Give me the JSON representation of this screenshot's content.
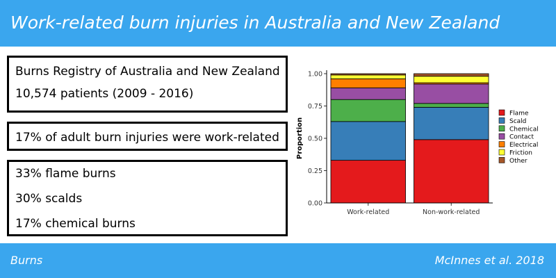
{
  "header": {
    "title": "Work-related burn injuries in Australia and New Zealand"
  },
  "boxes": {
    "registry": {
      "line1": "Burns Registry of Australia and New Zealand",
      "line2": "10,574 patients (2009 - 2016)"
    },
    "proportion": {
      "line1": "17% of adult burn injuries were work-related"
    },
    "types": {
      "line1": "33% flame burns",
      "line2": "30% scalds",
      "line3": "17% chemical burns"
    }
  },
  "footer": {
    "left": "Burns",
    "right": "McInnes et al. 2018"
  },
  "colors": {
    "accent": "#3aa6ee"
  },
  "chart_data": {
    "type": "bar",
    "stacked": true,
    "title": "",
    "xlabel": "",
    "ylabel": "Proportion",
    "ylim": [
      0,
      1
    ],
    "yticks": [
      "0.00",
      "0.25",
      "0.50",
      "0.75",
      "1.00"
    ],
    "categories": [
      "Work-related",
      "Non-work-related"
    ],
    "legend_position": "right",
    "series": [
      {
        "name": "Flame",
        "color": "#e41a1c",
        "values": [
          0.33,
          0.49
        ]
      },
      {
        "name": "Scald",
        "color": "#377eb8",
        "values": [
          0.3,
          0.25
        ]
      },
      {
        "name": "Chemical",
        "color": "#4daf4a",
        "values": [
          0.17,
          0.03
        ]
      },
      {
        "name": "Contact",
        "color": "#984ea3",
        "values": [
          0.09,
          0.15
        ]
      },
      {
        "name": "Electrical",
        "color": "#ff7f00",
        "values": [
          0.07,
          0.01
        ]
      },
      {
        "name": "Friction",
        "color": "#ffff33",
        "values": [
          0.03,
          0.05
        ]
      },
      {
        "name": "Other",
        "color": "#a65628",
        "values": [
          0.01,
          0.02
        ]
      }
    ]
  }
}
